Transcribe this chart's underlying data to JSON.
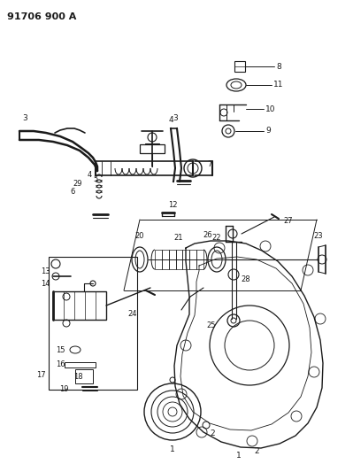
{
  "title": "91706 900 A",
  "bg_color": "#ffffff",
  "line_color": "#1a1a1a",
  "fig_width": 3.99,
  "fig_height": 5.33,
  "dpi": 100
}
